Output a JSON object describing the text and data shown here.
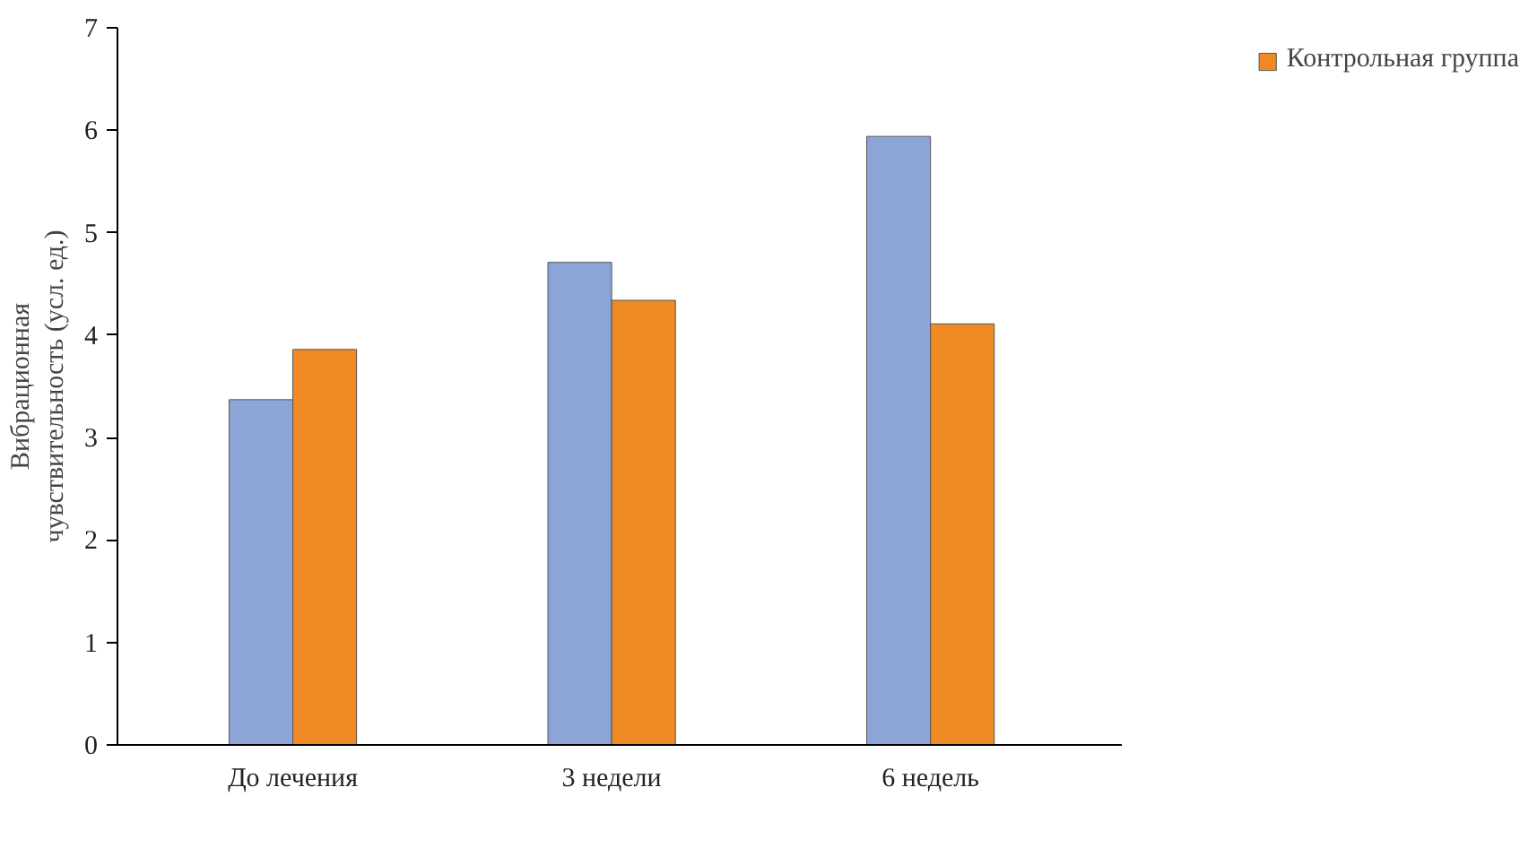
{
  "chart_data": {
    "type": "bar",
    "ylabel": "Вибрационная\nчувствительность (усл. ед.)",
    "categories": [
      "До лечения",
      "3 недели",
      "6 недель"
    ],
    "series": [
      {
        "color": "#8da5d6",
        "values": [
          3.37,
          4.71,
          5.94
        ]
      },
      {
        "name": "Контрольная группа",
        "color": "#f08a24",
        "values": [
          3.86,
          4.34,
          4.11
        ]
      }
    ],
    "ylim": [
      0,
      7
    ],
    "yticks": [
      0,
      1,
      2,
      3,
      4,
      5,
      6,
      7
    ],
    "grid": false,
    "legend": "top right"
  }
}
